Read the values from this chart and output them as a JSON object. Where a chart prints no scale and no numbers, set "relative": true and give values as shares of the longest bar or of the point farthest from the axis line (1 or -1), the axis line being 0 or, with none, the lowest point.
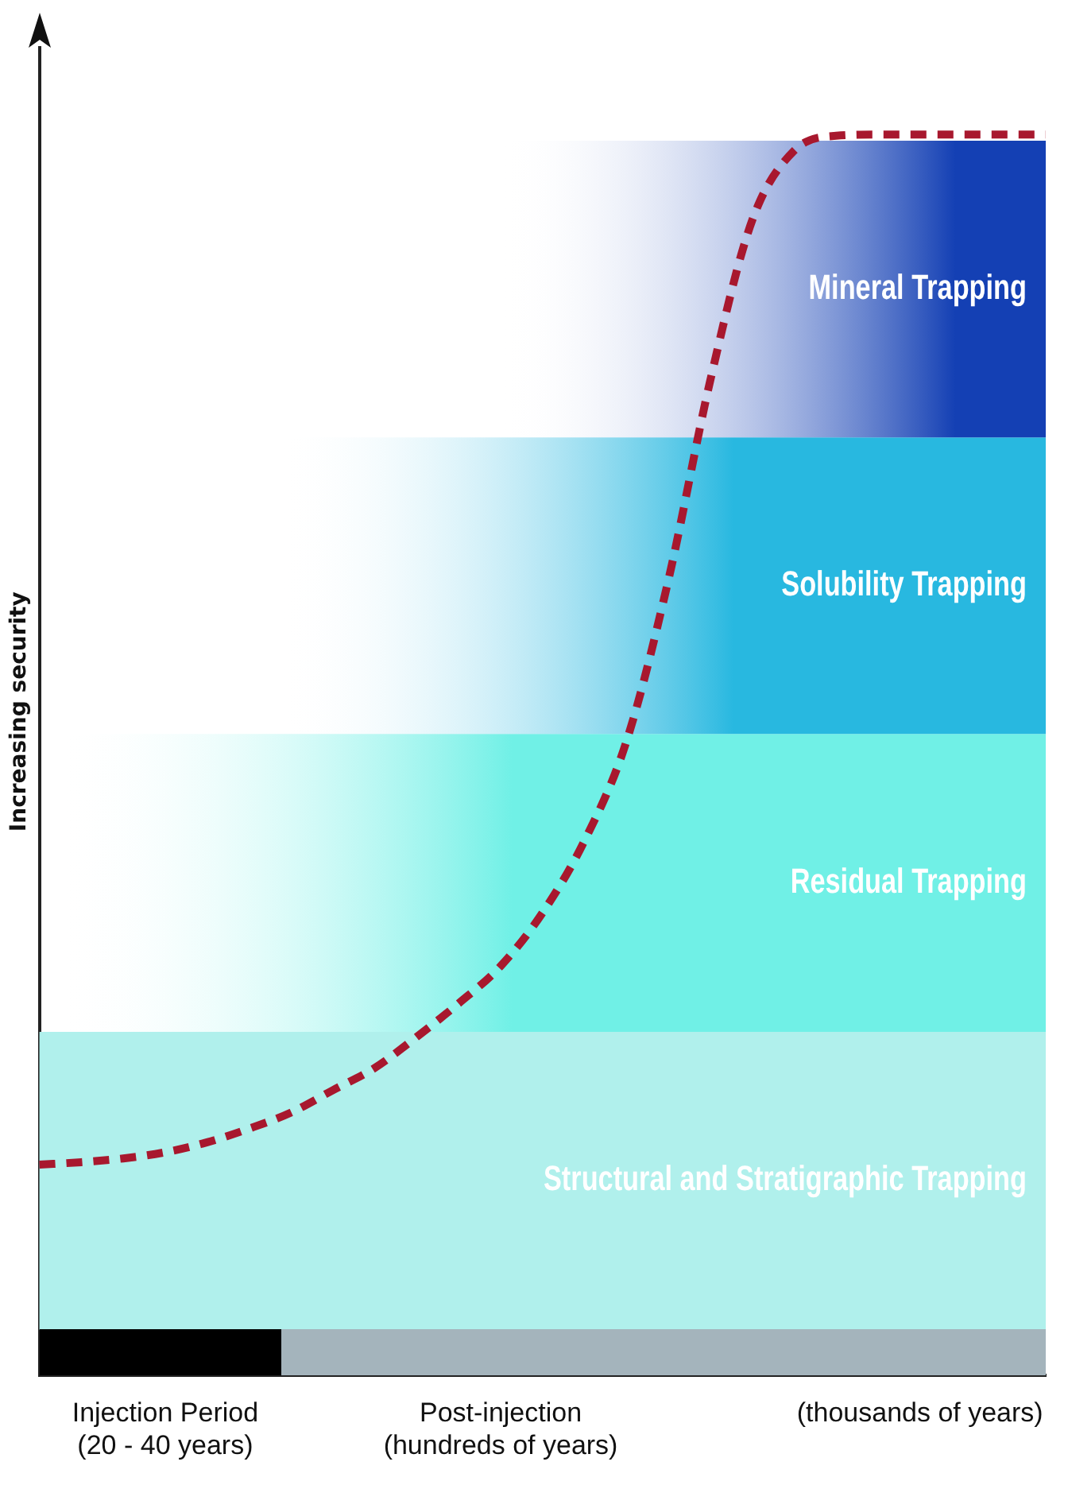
{
  "chart_data": {
    "type": "line",
    "relative": true,
    "ylabel": "Increasing security",
    "categories": [
      null,
      null,
      null,
      "Injection Period\n(20 - 40 years)",
      null,
      null,
      null,
      null,
      null,
      null,
      null,
      "Post-injection\n(hundreds of years)",
      null,
      null,
      null,
      null,
      null,
      null,
      null,
      null,
      null,
      "(thousands of years)",
      null,
      null,
      null
    ],
    "series": [
      {
        "color": "#a8182e",
        "values": [
          0.17,
          0.172,
          0.175,
          0.18,
          0.188,
          0.199,
          0.212,
          0.23,
          0.248,
          0.273,
          0.3,
          0.33,
          0.373,
          0.431,
          0.511,
          0.641,
          0.802,
          0.931,
          0.987,
          0.999,
          1,
          1,
          1,
          1,
          1
        ]
      }
    ],
    "line_style": "dashed",
    "marker": "none",
    "grid": false,
    "legend": false,
    "bands": [
      {
        "axis": "y",
        "from": 0.037,
        "to": 0.277,
        "label": "Structural and Stratigraphic Trapping",
        "color": "#b0f0ec"
      },
      {
        "axis": "y",
        "from": 0.277,
        "to": 0.517,
        "label": "Residual Trapping",
        "color": "#70f0e6"
      },
      {
        "axis": "y",
        "from": 0.517,
        "to": 0.756,
        "label": "Solubility Trapping",
        "color": "#28b8e0"
      },
      {
        "axis": "y",
        "from": 0.756,
        "to": 0.995,
        "label": "Mineral Trapping",
        "color": "#1440b4"
      }
    ]
  }
}
